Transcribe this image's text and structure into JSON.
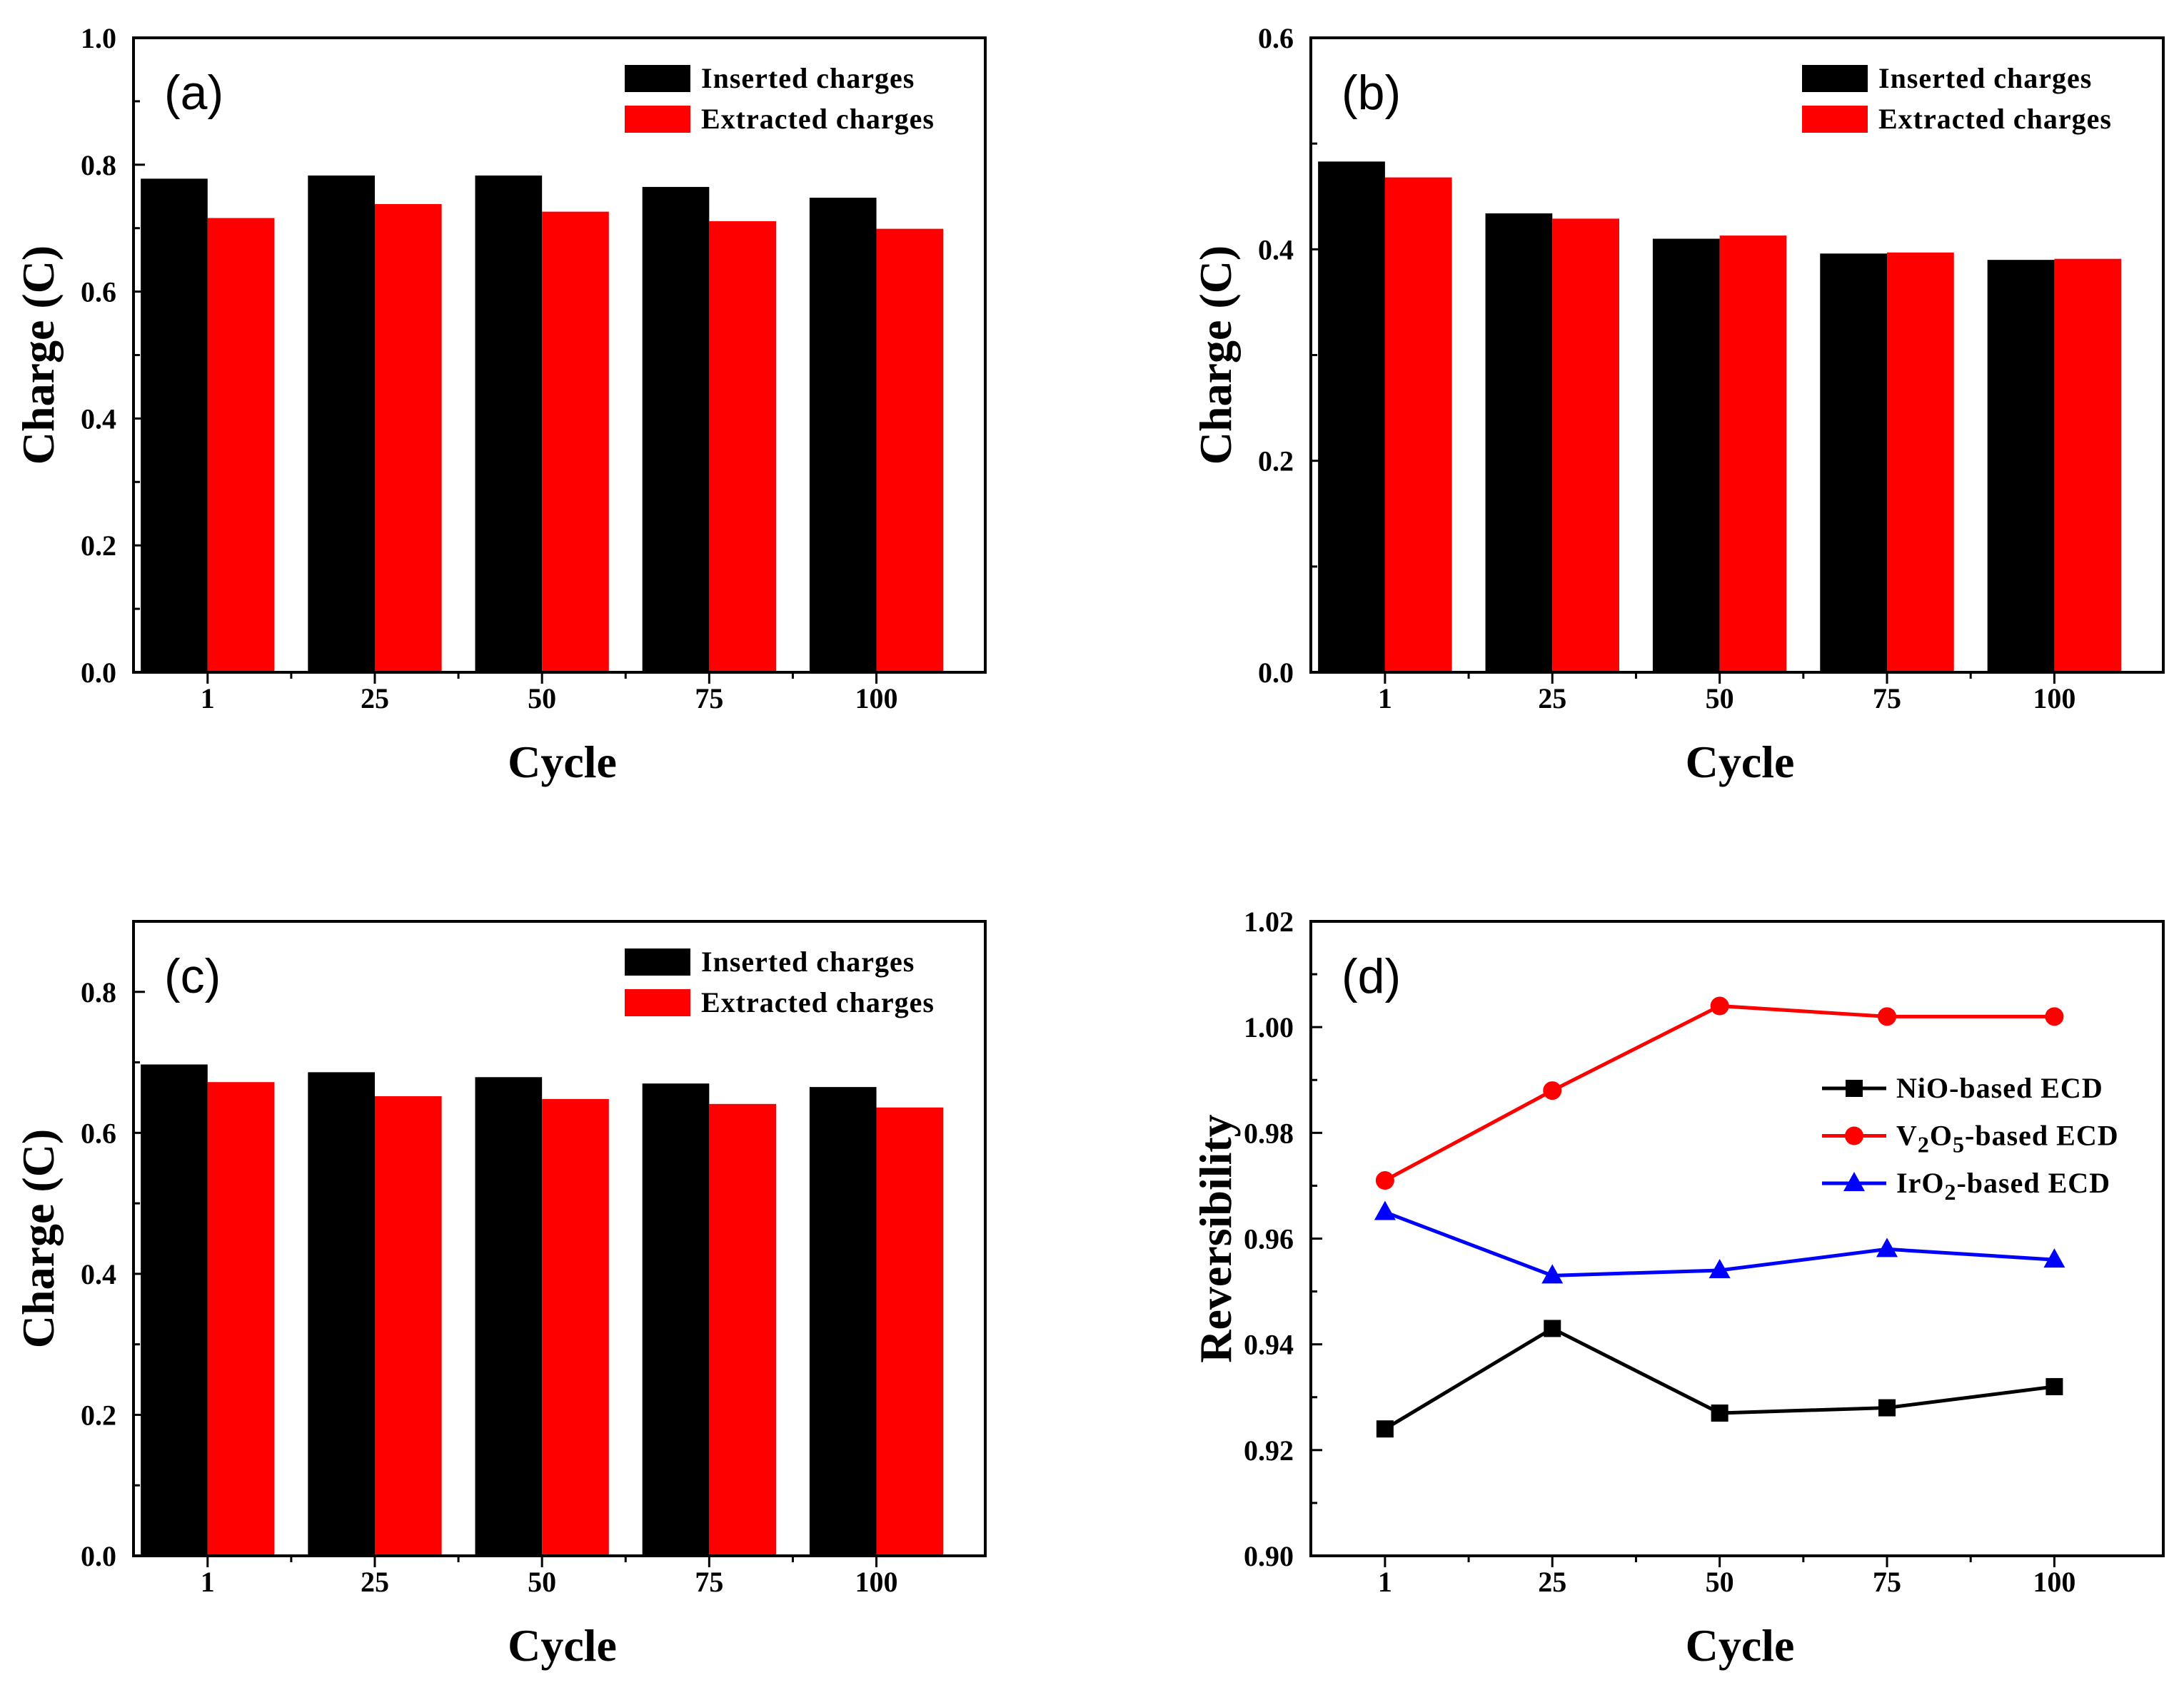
{
  "chart_data": [
    {
      "panel": "(a)",
      "type": "bar",
      "categories": [
        "1",
        "25",
        "50",
        "75",
        "100"
      ],
      "series": [
        {
          "name": "Inserted charges",
          "color": "#000000",
          "values": [
            0.778,
            0.783,
            0.783,
            0.765,
            0.748
          ]
        },
        {
          "name": "Extracted charges",
          "color": "#ff0000",
          "values": [
            0.716,
            0.738,
            0.726,
            0.711,
            0.699
          ]
        }
      ],
      "xlabel": "Cycle",
      "ylabel": "Charge (C)",
      "ylim": [
        0,
        1.0
      ],
      "yticks": [
        0.0,
        0.2,
        0.4,
        0.6,
        0.8,
        1.0
      ],
      "ytick_labels": [
        "0.0",
        "0.2",
        "0.4",
        "0.6",
        "0.8",
        "1.0"
      ],
      "legend": "top-right"
    },
    {
      "panel": "(b)",
      "type": "bar",
      "categories": [
        "1",
        "25",
        "50",
        "75",
        "100"
      ],
      "series": [
        {
          "name": "Inserted charges",
          "color": "#000000",
          "values": [
            0.483,
            0.434,
            0.41,
            0.396,
            0.39
          ]
        },
        {
          "name": "Extracted charges",
          "color": "#ff0000",
          "values": [
            0.468,
            0.429,
            0.413,
            0.397,
            0.391
          ]
        }
      ],
      "xlabel": "Cycle",
      "ylabel": "Charge (C)",
      "ylim": [
        0,
        0.6
      ],
      "yticks": [
        0.0,
        0.2,
        0.4,
        0.6
      ],
      "ytick_labels": [
        "0.0",
        "0.2",
        "0.4",
        "0.6"
      ],
      "legend": "top-right"
    },
    {
      "panel": "(c)",
      "type": "bar",
      "categories": [
        "1",
        "25",
        "50",
        "75",
        "100"
      ],
      "series": [
        {
          "name": "Inserted charges",
          "color": "#000000",
          "values": [
            0.697,
            0.686,
            0.679,
            0.67,
            0.665
          ]
        },
        {
          "name": "Extracted charges",
          "color": "#ff0000",
          "values": [
            0.672,
            0.652,
            0.648,
            0.641,
            0.636
          ]
        }
      ],
      "xlabel": "Cycle",
      "ylabel": "Charge (C)",
      "ylim": [
        0,
        0.9
      ],
      "yticks": [
        0.0,
        0.2,
        0.4,
        0.6,
        0.8
      ],
      "ytick_labels": [
        "0.0",
        "0.2",
        "0.4",
        "0.6",
        "0.8"
      ],
      "legend": "top-right"
    },
    {
      "panel": "(d)",
      "type": "line",
      "x": [
        "1",
        "25",
        "50",
        "75",
        "100"
      ],
      "series": [
        {
          "name": "NiO-based ECD",
          "name_parts": [
            [
              "NiO-based ECD",
              false
            ]
          ],
          "color": "#000000",
          "marker": "square",
          "values": [
            0.924,
            0.943,
            0.927,
            0.928,
            0.932
          ]
        },
        {
          "name": "V2O5-based ECD",
          "name_parts": [
            [
              "V",
              false
            ],
            [
              "2",
              true
            ],
            [
              "O",
              false
            ],
            [
              "5",
              true
            ],
            [
              "-based ECD",
              false
            ]
          ],
          "color": "#ff0000",
          "marker": "circle",
          "values": [
            0.971,
            0.988,
            1.004,
            1.002,
            1.002
          ]
        },
        {
          "name": "IrO2-based ECD",
          "name_parts": [
            [
              "IrO",
              false
            ],
            [
              "2",
              true
            ],
            [
              "-based ECD",
              false
            ]
          ],
          "color": "#0000ff",
          "marker": "triangle",
          "values": [
            0.965,
            0.953,
            0.954,
            0.958,
            0.956
          ]
        }
      ],
      "xlabel": "Cycle",
      "ylabel": "Reversibility",
      "ylim": [
        0.9,
        1.02
      ],
      "yticks": [
        0.9,
        0.92,
        0.94,
        0.96,
        0.98,
        1.0,
        1.02
      ],
      "ytick_labels": [
        "0.90",
        "0.92",
        "0.94",
        "0.96",
        "0.98",
        "1.00",
        "1.02"
      ],
      "legend": "right"
    }
  ]
}
